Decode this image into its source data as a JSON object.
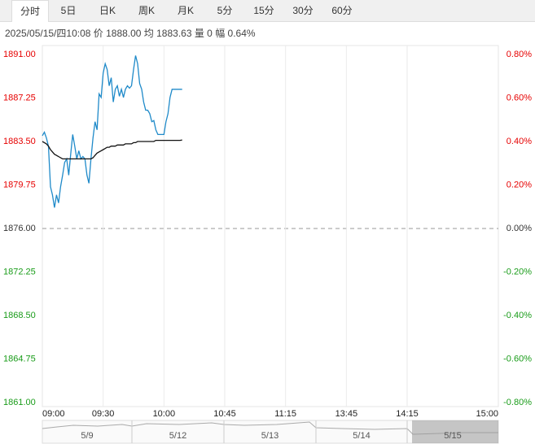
{
  "tabs": [
    "分时",
    "5日",
    "日K",
    "周K",
    "月K",
    "5分",
    "15分",
    "30分",
    "60分"
  ],
  "selected_tab": 0,
  "info": "2025/05/15/四10:08 价 1888.00 均 1883.63 量 0 幅 0.64%",
  "chart_data": {
    "type": "line",
    "x": [
      0,
      1,
      2,
      3,
      4,
      5,
      6,
      7,
      8,
      9,
      10,
      11,
      12,
      13,
      14,
      15,
      16,
      17,
      18,
      19,
      20,
      21,
      22,
      23,
      24,
      25,
      26,
      27,
      28,
      29,
      30,
      31,
      32,
      33,
      34,
      35,
      36,
      37,
      38,
      39,
      40,
      41,
      42,
      43,
      44,
      45,
      46,
      47,
      48,
      49,
      50,
      51,
      52,
      53,
      54,
      55,
      56,
      57,
      58,
      59,
      60,
      61,
      62,
      63,
      64,
      65,
      66,
      67,
      68,
      69
    ],
    "xlim": [
      0,
      225
    ],
    "xticks": [
      {
        "value": 0,
        "label": "09:00"
      },
      {
        "value": 30,
        "label": "09:30"
      },
      {
        "value": 60,
        "label": "10:00"
      },
      {
        "value": 90,
        "label": "10:45"
      },
      {
        "value": 120,
        "label": "11:15"
      },
      {
        "value": 150,
        "label": "13:45"
      },
      {
        "value": 180,
        "label": "14:15"
      },
      {
        "value": 225,
        "label": "15:00"
      }
    ],
    "ylim": [
      1861,
      1891
    ],
    "yticks": [
      {
        "value": 1891,
        "label": "1891.00"
      },
      {
        "value": 1887.25,
        "label": "1887.25"
      },
      {
        "value": 1883.5,
        "label": "1883.50"
      },
      {
        "value": 1879.75,
        "label": "1879.75"
      },
      {
        "value": 1876,
        "label": "1876.00"
      },
      {
        "value": 1872.25,
        "label": "1872.25"
      },
      {
        "value": 1868.5,
        "label": "1868.50"
      },
      {
        "value": 1864.75,
        "label": "1864.75"
      },
      {
        "value": 1861,
        "label": "1861.00"
      }
    ],
    "y2lim": [
      -0.8,
      0.8
    ],
    "y2ticks": [
      {
        "value": 0.8,
        "label": "0.80%"
      },
      {
        "value": 0.6,
        "label": "0.60%"
      },
      {
        "value": 0.4,
        "label": "0.40%"
      },
      {
        "value": 0.2,
        "label": "0.20%"
      },
      {
        "value": 0,
        "label": "0.00%"
      },
      {
        "value": -0.2,
        "label": "-0.20%"
      },
      {
        "value": -0.4,
        "label": "-0.40%"
      },
      {
        "value": -0.6,
        "label": "-0.60%"
      },
      {
        "value": -0.8,
        "label": "-0.80%"
      }
    ],
    "up_color": "#e60000",
    "down_color": "#1a9c1a",
    "flat_color": "#333333",
    "series": [
      {
        "color": "#1f8ac9",
        "values": [
          1884.0,
          1884.3,
          1883.8,
          1883.1,
          1879.6,
          1878.9,
          1877.8,
          1878.9,
          1878.2,
          1879.6,
          1880.6,
          1881.7,
          1882.0,
          1880.6,
          1882.4,
          1884.1,
          1883.1,
          1882.0,
          1882.7,
          1882.0,
          1882.2,
          1882.0,
          1880.6,
          1879.9,
          1882.0,
          1883.8,
          1885.2,
          1884.5,
          1887.6,
          1887.3,
          1889.4,
          1890.2,
          1889.7,
          1888.3,
          1889.0,
          1886.9,
          1888.0,
          1888.3,
          1887.4,
          1888.0,
          1887.3,
          1888.0,
          1888.3,
          1888.1,
          1888.3,
          1889.7,
          1890.9,
          1890.2,
          1888.5,
          1888.0,
          1886.9,
          1886.2,
          1886.2,
          1885.9,
          1885.2,
          1885.3,
          1884.5,
          1884.1,
          1884.1,
          1884.1,
          1884.1,
          1885.2,
          1885.9,
          1887.3,
          1888.0,
          1888.0,
          1888.0,
          1888.0,
          1888.0,
          1888.0
        ]
      },
      {
        "color": "#111111",
        "values": [
          1883.5,
          1883.4,
          1883.3,
          1883.1,
          1882.8,
          1882.6,
          1882.4,
          1882.3,
          1882.2,
          1882.1,
          1882.0,
          1882.0,
          1882.0,
          1882.0,
          1882.0,
          1882.0,
          1882.0,
          1882.0,
          1882.0,
          1882.0,
          1882.0,
          1882.0,
          1882.0,
          1882.0,
          1882.0,
          1882.1,
          1882.3,
          1882.5,
          1882.6,
          1882.7,
          1882.8,
          1882.9,
          1883.0,
          1883.0,
          1883.1,
          1883.1,
          1883.1,
          1883.2,
          1883.2,
          1883.2,
          1883.2,
          1883.3,
          1883.3,
          1883.3,
          1883.3,
          1883.4,
          1883.4,
          1883.5,
          1883.5,
          1883.5,
          1883.5,
          1883.5,
          1883.5,
          1883.5,
          1883.5,
          1883.5,
          1883.6,
          1883.6,
          1883.6,
          1883.6,
          1883.6,
          1883.6,
          1883.6,
          1883.6,
          1883.6,
          1883.6,
          1883.6,
          1883.6,
          1883.6,
          1883.63
        ]
      }
    ],
    "grid": true,
    "navigator": {
      "days": [
        "5/9",
        "5/12",
        "5/13",
        "5/14",
        "5/15"
      ],
      "selected": 4
    }
  }
}
